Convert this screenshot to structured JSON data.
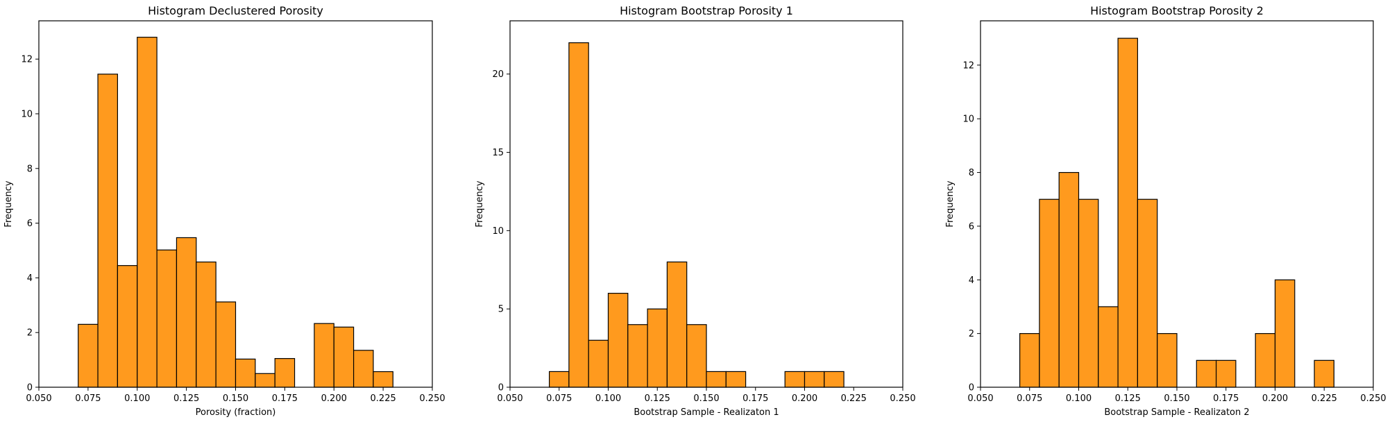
{
  "chart_data": [
    {
      "type": "bar",
      "title": "Histogram Declustered Porosity",
      "xlabel": "Porosity (fraction)",
      "ylabel": "Frequency",
      "xlim": [
        0.05,
        0.25
      ],
      "ylim": [
        0,
        13.4
      ],
      "xticks": [
        "0.050",
        "0.075",
        "0.100",
        "0.125",
        "0.150",
        "0.175",
        "0.200",
        "0.225",
        "0.250"
      ],
      "yticks": [
        0,
        2,
        4,
        6,
        8,
        10,
        12
      ],
      "bin_edges": [
        0.07,
        0.08,
        0.09,
        0.1,
        0.11,
        0.12,
        0.13,
        0.14,
        0.15,
        0.16,
        0.17,
        0.18,
        0.19,
        0.2,
        0.21,
        0.22,
        0.23
      ],
      "values": [
        2.3,
        11.45,
        4.45,
        12.8,
        5.02,
        5.47,
        4.58,
        3.12,
        1.03,
        0.5,
        1.05,
        0,
        2.33,
        2.2,
        1.35,
        0.57
      ],
      "color": "#ff9a1e"
    },
    {
      "type": "bar",
      "title": "Histogram Bootstrap Porosity 1",
      "xlabel": "Bootstrap Sample - Realizaton 1",
      "ylabel": "Frequency",
      "xlim": [
        0.05,
        0.25
      ],
      "ylim": [
        0,
        23.4
      ],
      "xticks": [
        "0.050",
        "0.075",
        "0.100",
        "0.125",
        "0.150",
        "0.175",
        "0.200",
        "0.225",
        "0.250"
      ],
      "yticks": [
        0,
        5,
        10,
        15,
        20
      ],
      "bin_edges": [
        0.07,
        0.08,
        0.09,
        0.1,
        0.11,
        0.12,
        0.13,
        0.14,
        0.15,
        0.16,
        0.17,
        0.18,
        0.19,
        0.2,
        0.21,
        0.22
      ],
      "values": [
        1,
        22,
        3,
        6,
        4,
        5,
        8,
        4,
        1,
        1,
        0,
        0,
        1,
        1,
        1
      ],
      "color": "#ff9a1e"
    },
    {
      "type": "bar",
      "title": "Histogram Bootstrap Porosity 2",
      "xlabel": "Bootstrap Sample - Realizaton 2",
      "ylabel": "Frequency",
      "xlim": [
        0.05,
        0.25
      ],
      "ylim": [
        0,
        13.65
      ],
      "xticks": [
        "0.050",
        "0.075",
        "0.100",
        "0.125",
        "0.150",
        "0.175",
        "0.200",
        "0.225",
        "0.250"
      ],
      "yticks": [
        0,
        2,
        4,
        6,
        8,
        10,
        12
      ],
      "bin_edges": [
        0.07,
        0.08,
        0.09,
        0.1,
        0.11,
        0.12,
        0.13,
        0.14,
        0.15,
        0.16,
        0.17,
        0.18,
        0.19,
        0.2,
        0.21,
        0.22,
        0.23
      ],
      "values": [
        2,
        7,
        8,
        7,
        3,
        13,
        7,
        2,
        0,
        1,
        1,
        0,
        2,
        4,
        0,
        1
      ],
      "color": "#ff9a1e"
    }
  ]
}
